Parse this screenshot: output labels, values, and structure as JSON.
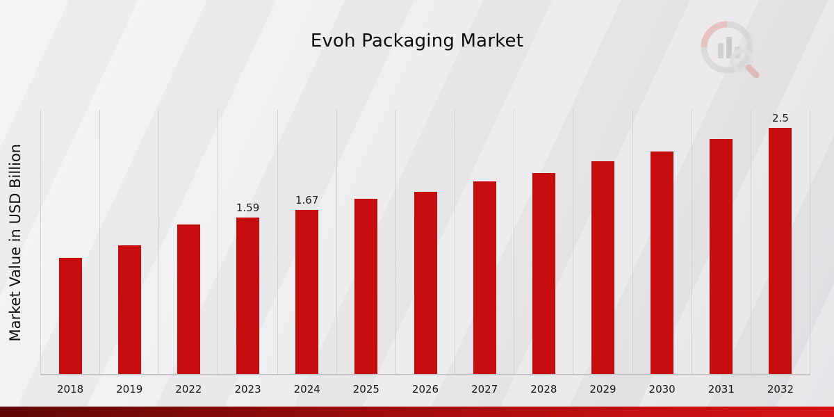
{
  "header": {
    "title": "Evoh Packaging Market"
  },
  "icons": {
    "logo": "bar-chart-magnifier-logo"
  },
  "colors": {
    "bar": "#c50d0d",
    "stripe_dark": "#5e0707",
    "stripe_bright": "#d51313",
    "gridline": "#d2d0d2"
  },
  "chart_data": {
    "type": "bar",
    "title": "Evoh Packaging Market",
    "xlabel": "",
    "ylabel": "Market Value in USD Billion",
    "categories": [
      "2018",
      "2019",
      "2022",
      "2023",
      "2024",
      "2025",
      "2026",
      "2027",
      "2028",
      "2029",
      "2030",
      "2031",
      "2032"
    ],
    "values": [
      1.18,
      1.31,
      1.52,
      1.59,
      1.67,
      1.78,
      1.85,
      1.96,
      2.04,
      2.16,
      2.26,
      2.39,
      2.5
    ],
    "data_labels": [
      "",
      "",
      "",
      "1.59",
      "1.67",
      "",
      "",
      "",
      "",
      "",
      "",
      "",
      "2.5"
    ],
    "ylim": [
      0,
      2.7
    ],
    "grid": "vertical",
    "legend": "none",
    "bar_color": "#c50d0d"
  }
}
